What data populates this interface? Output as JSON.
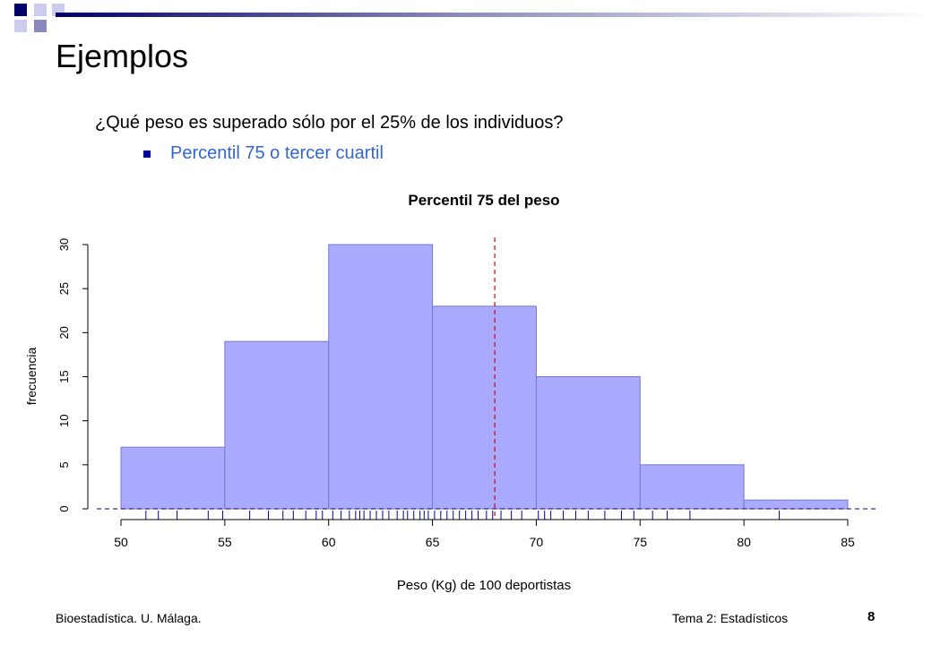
{
  "slide": {
    "title": "Ejemplos",
    "question": "¿Qué peso es superado sólo por el 25% de los individuos?",
    "bullet": "Percentil 75 o tercer cuartil",
    "footer_left": "Bioestadística. U. Málaga.",
    "footer_right": "Tema 2: Estadísticos",
    "page_number": "8"
  },
  "colors": {
    "bar_fill": "#aaaaff",
    "bar_stroke": "#7777cc",
    "percentile_line": "#dd0000",
    "rug": "#000099",
    "bullet_text": "#3366cc"
  },
  "chart_data": {
    "type": "bar",
    "title": "Percentil 75 del peso",
    "xlabel": "Peso (Kg) de 100 deportistas",
    "ylabel": "frecuencia",
    "bins": [
      [
        50,
        55
      ],
      [
        55,
        60
      ],
      [
        60,
        65
      ],
      [
        65,
        70
      ],
      [
        70,
        75
      ],
      [
        75,
        80
      ],
      [
        80,
        85
      ]
    ],
    "values": [
      7,
      19,
      30,
      23,
      15,
      5,
      1
    ],
    "xlim": [
      50,
      85
    ],
    "ylim": [
      0,
      30
    ],
    "xticks": [
      50,
      55,
      60,
      65,
      70,
      75,
      80,
      85
    ],
    "yticks": [
      0,
      5,
      10,
      15,
      20,
      25,
      30
    ],
    "percentile_75": 68,
    "rug": [
      51.2,
      51.8,
      52.7,
      54.2,
      54.9,
      56.2,
      57.1,
      57.8,
      58.3,
      58.9,
      59.4,
      59.7,
      60.2,
      60.6,
      61.0,
      61.3,
      61.5,
      61.7,
      62.0,
      62.3,
      62.6,
      62.9,
      63.3,
      63.6,
      63.8,
      64.1,
      64.4,
      64.6,
      64.8,
      65.1,
      65.4,
      65.7,
      66.0,
      66.3,
      66.6,
      66.9,
      67.2,
      67.6,
      67.9,
      68.3,
      68.8,
      69.3,
      70.1,
      70.4,
      70.7,
      71.3,
      71.9,
      72.5,
      73.3,
      74.1,
      74.7,
      75.6,
      76.3,
      77.4,
      81.7
    ]
  }
}
